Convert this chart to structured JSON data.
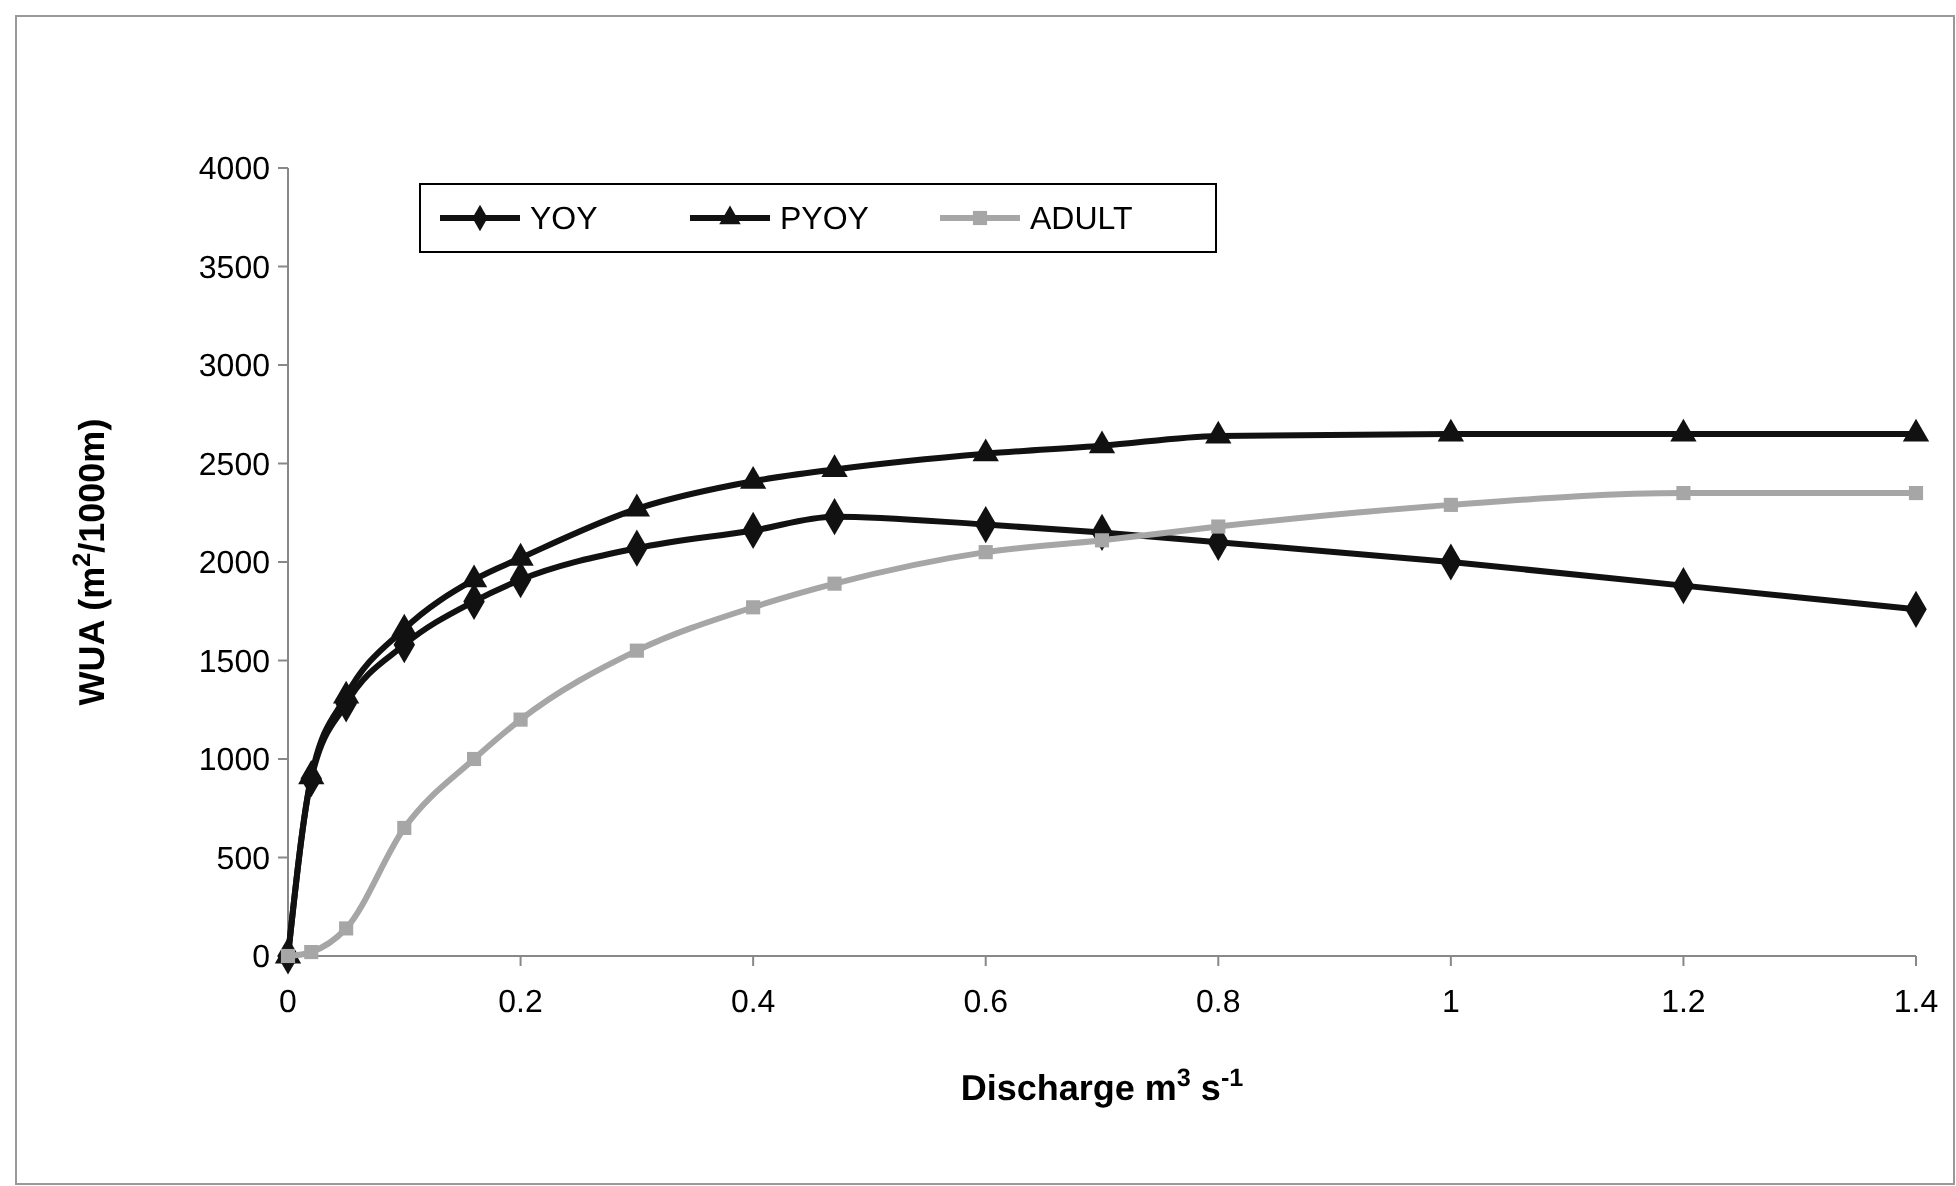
{
  "chart_data": {
    "type": "line",
    "xlabel": "Discharge m$^{3}$ s$^{-1}$",
    "ylabel": "WUA (m$^{2}$/1000m)",
    "x": [
      0,
      0.02,
      0.05,
      0.1,
      0.16,
      0.2,
      0.3,
      0.4,
      0.47,
      0.6,
      0.7,
      0.8,
      1,
      1.2,
      1.4
    ],
    "series": [
      {
        "name": "YOY",
        "color": "#111111",
        "marker": "diamond",
        "values": [
          0,
          900,
          1280,
          1580,
          1800,
          1910,
          2070,
          2160,
          2230,
          2190,
          2150,
          2100,
          2000,
          1880,
          1760
        ]
      },
      {
        "name": "PYOY",
        "color": "#111111",
        "marker": "triangle",
        "values": [
          0,
          910,
          1320,
          1660,
          1910,
          2020,
          2270,
          2410,
          2470,
          2550,
          2590,
          2640,
          2650,
          2650,
          2650
        ]
      },
      {
        "name": "ADULT",
        "color": "#a6a6a6",
        "marker": "square",
        "values": [
          0,
          20,
          140,
          650,
          1000,
          1200,
          1550,
          1770,
          1890,
          2050,
          2110,
          2180,
          2290,
          2350,
          2350
        ]
      }
    ],
    "xlim": [
      0,
      1.4
    ],
    "xticks": [
      0,
      0.2,
      0.4,
      0.6,
      0.8,
      1,
      1.2,
      1.4
    ],
    "ylim": [
      0,
      4000
    ],
    "yticks": [
      0,
      500,
      1000,
      1500,
      2000,
      2500,
      3000,
      3500,
      4000
    ],
    "grid": false,
    "legend": "top left",
    "line_style": "solid"
  }
}
